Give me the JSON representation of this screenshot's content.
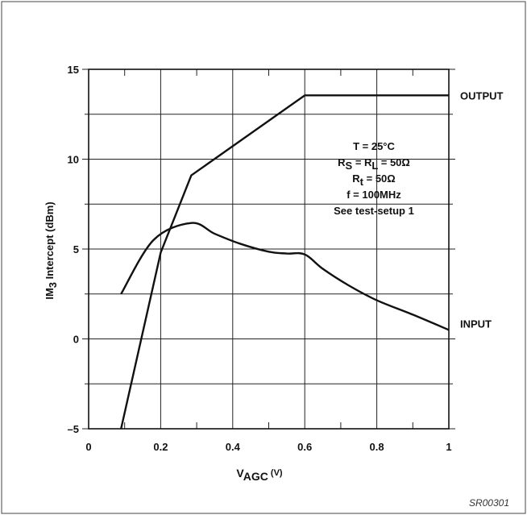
{
  "chart_data": {
    "type": "line",
    "xlabel_main": "V",
    "xlabel_sub": "AGC",
    "xlabel_unit": " (V)",
    "ylabel_pre": "IM",
    "ylabel_sub": "3",
    "ylabel_post": "  Intercept (dBm)",
    "xlim": [
      0,
      1
    ],
    "ylim": [
      -5,
      15
    ],
    "x_ticks": [
      0,
      0.2,
      0.4,
      0.6,
      0.8,
      1
    ],
    "x_tick_labels": [
      "0",
      "0.2",
      "0.4",
      "0.6",
      "0.8",
      "1"
    ],
    "y_ticks": [
      -5,
      0,
      5,
      10,
      15
    ],
    "y_tick_labels": [
      "–5",
      "0",
      "5",
      "10",
      "15"
    ],
    "grid": true,
    "series": [
      {
        "name": "OUTPUT",
        "color": "#111111",
        "points": [
          [
            0.09,
            -5.0
          ],
          [
            0.2,
            4.8
          ],
          [
            0.285,
            9.1
          ],
          [
            0.6,
            13.55
          ],
          [
            1.0,
            13.55
          ]
        ]
      },
      {
        "name": "INPUT",
        "color": "#111111",
        "points": [
          [
            0.09,
            2.5
          ],
          [
            0.18,
            5.5
          ],
          [
            0.285,
            6.45
          ],
          [
            0.35,
            5.85
          ],
          [
            0.42,
            5.3
          ],
          [
            0.5,
            4.85
          ],
          [
            0.55,
            4.75
          ],
          [
            0.6,
            4.7
          ],
          [
            0.65,
            3.9
          ],
          [
            0.72,
            3.0
          ],
          [
            0.8,
            2.15
          ],
          [
            0.9,
            1.35
          ],
          [
            1.0,
            0.5
          ]
        ]
      }
    ],
    "annotation_lines": [
      {
        "pre": "T = 25°C",
        "parts": [
          {
            "t": "T = 25°C"
          }
        ]
      },
      {
        "parts": [
          {
            "t": "R"
          },
          {
            "t": "S",
            "sub": true
          },
          {
            "t": " = R"
          },
          {
            "t": "L",
            "sub": true
          },
          {
            "t": " = 50Ω"
          }
        ]
      },
      {
        "parts": [
          {
            "t": "R"
          },
          {
            "t": "t",
            "sub": true
          },
          {
            "t": " = 50Ω"
          }
        ]
      },
      {
        "parts": [
          {
            "t": "f = 100MHz"
          }
        ]
      },
      {
        "parts": [
          {
            "t": "See test-setup 1"
          }
        ]
      }
    ],
    "figure_code": "SR00301"
  }
}
